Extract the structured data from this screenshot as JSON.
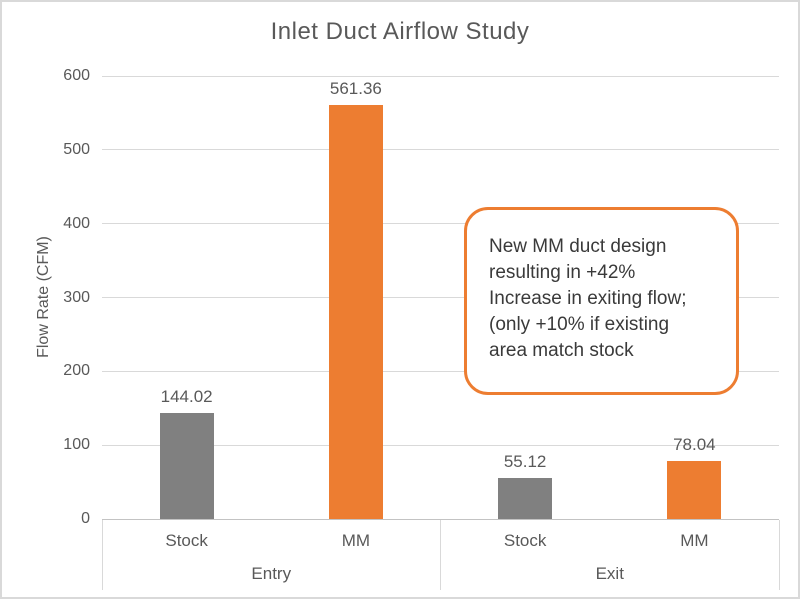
{
  "chart_data": {
    "type": "bar",
    "title": "Inlet Duct Airflow Study",
    "ylabel": "Flow Rate (CFM)",
    "xlabel": "",
    "ylim": [
      0,
      600
    ],
    "yticks": [
      0,
      100,
      200,
      300,
      400,
      500,
      600
    ],
    "grid": true,
    "legend_position": "none",
    "categories": [
      "Stock",
      "MM",
      "Stock",
      "MM"
    ],
    "group_labels": [
      "Entry",
      "Exit"
    ],
    "values": [
      144.02,
      561.36,
      55.12,
      78.04
    ],
    "value_labels": [
      "144.02",
      "561.36",
      "55.12",
      "78.04"
    ],
    "bar_colors": [
      "#808080",
      "#ED7D31",
      "#808080",
      "#ED7D31"
    ],
    "series_legend": [
      {
        "name": "Stock",
        "color": "#808080"
      },
      {
        "name": "MM",
        "color": "#ED7D31"
      }
    ],
    "annotation": {
      "text": "New MM duct design\nresulting in +42%\nIncrease in exiting flow;\n(only +10% if existing\narea match stock",
      "border_color": "#ED7D31"
    },
    "colors": {
      "text": "#595959",
      "gridline": "#D9D9D9",
      "axis_line": "#C3C3C3",
      "annotation_text": "#3A3A3A",
      "frame_border": "#D9D9D9",
      "background": "#FFFFFF"
    }
  }
}
